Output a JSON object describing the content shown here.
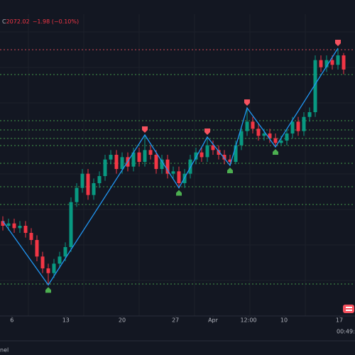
{
  "header": {
    "label": "C",
    "close": "2072.02",
    "change": "−1.98 (−0.10%)"
  },
  "footer": {
    "panel_label": "nel",
    "clock": "00:49:2"
  },
  "chart_data": {
    "type": "candlestick",
    "xlim": [
      -0.5,
      61
    ],
    "ylim": [
      1967.9,
      2095.4
    ],
    "xticks": [
      {
        "value": 1.6,
        "label": "6"
      },
      {
        "value": 11.1,
        "label": "13"
      },
      {
        "value": 21,
        "label": "20"
      },
      {
        "value": 30.4,
        "label": "27"
      },
      {
        "value": 37,
        "label": "Apr"
      },
      {
        "value": 43.25,
        "label": "12:00"
      },
      {
        "value": 49.5,
        "label": "10"
      },
      {
        "value": 59.25,
        "label": "17"
      }
    ],
    "up_color": "#089981",
    "down_color": "#f23645",
    "open": [
      2008,
      2006,
      2007,
      2005,
      2006,
      2003,
      2000,
      1993,
      1988,
      1986,
      1990,
      1993,
      1997,
      2016,
      2022,
      2028,
      2019,
      2024,
      2027,
      2034,
      2036,
      2030,
      2035,
      2031,
      2037,
      2033,
      2038,
      2036,
      2030,
      2034,
      2028,
      2029,
      2024,
      2028,
      2034,
      2037,
      2035,
      2040,
      2038,
      2036,
      2034,
      2033,
      2040,
      2046,
      2050,
      2047,
      2044,
      2045,
      2043,
      2041,
      2042,
      2045,
      2050,
      2046,
      2052,
      2054,
      2076,
      2073,
      2076,
      2074,
      2078
    ],
    "high": [
      2010,
      2009,
      2009,
      2008,
      2008,
      2005,
      2002,
      1995,
      1990,
      1992,
      1995,
      1999,
      2018,
      2024,
      2030,
      2030,
      2026,
      2029,
      2036,
      2038,
      2038,
      2037,
      2037,
      2039,
      2039,
      2044.4,
      2040,
      2038,
      2036,
      2036,
      2031,
      2031,
      2030,
      2036,
      2039,
      2039,
      2043.5,
      2042,
      2040,
      2038,
      2036,
      2042,
      2048,
      2055.8,
      2052,
      2049,
      2047,
      2047,
      2045,
      2044,
      2047,
      2052,
      2052,
      2054,
      2056,
      2078,
      2078,
      2078,
      2078,
      2081,
      2079
    ],
    "low": [
      2004,
      2004,
      2003,
      2003,
      2001,
      1998,
      1991,
      1986,
      1981,
      1984,
      1988,
      1991,
      1995,
      2014,
      2020,
      2017,
      2017,
      2022,
      2025,
      2032,
      2028,
      2028,
      2029,
      2029,
      2031,
      2031,
      2034,
      2028,
      2028,
      2026,
      2026,
      2022,
      2022,
      2026,
      2032,
      2033,
      2033,
      2036,
      2034,
      2032,
      2031.5,
      2032,
      2038,
      2044,
      2045,
      2042,
      2042,
      2041,
      2039.3,
      2040,
      2040,
      2043,
      2044,
      2044,
      2050,
      2052,
      2071,
      2071,
      2072,
      2072,
      2070
    ],
    "close": [
      2006,
      2007,
      2005,
      2006,
      2003,
      2000,
      1993,
      1988,
      1986,
      1990,
      1993,
      1997,
      2016,
      2022,
      2028,
      2019,
      2024,
      2027,
      2034,
      2036,
      2030,
      2035,
      2031,
      2037,
      2033,
      2038,
      2036,
      2030,
      2034,
      2028,
      2029,
      2024,
      2028,
      2034,
      2037,
      2035,
      2040,
      2038,
      2036,
      2034,
      2033,
      2040,
      2046,
      2050,
      2047,
      2044,
      2045,
      2043,
      2041,
      2042,
      2045,
      2050,
      2046,
      2052,
      2054,
      2076,
      2073,
      2076,
      2074,
      2078,
      2072.02
    ],
    "pivots": {
      "x": [
        0,
        8,
        25,
        31,
        36,
        40,
        43,
        48,
        59
      ],
      "values": [
        2008,
        1981,
        2044.4,
        2022,
        2043.5,
        2031.5,
        2055.8,
        2039.3,
        2081
      ],
      "kind": [
        null,
        "low",
        "high",
        "low",
        "high",
        "low",
        "high",
        "low",
        "high"
      ],
      "color": "#2196f3",
      "high_color": "#f7525f",
      "low_color": "#4caf50"
    },
    "levels": {
      "values": [
        2080.4,
        2069.9,
        2050.4,
        2046.5,
        2042.9,
        2039.9,
        2032.4,
        2022.5,
        2015,
        1981.4
      ],
      "colors": [
        "#f7525f",
        "#4caf50",
        "#4caf50",
        "#4caf50",
        "#4caf50",
        "#4caf50",
        "#4caf50",
        "#4caf50",
        "#4caf50",
        "#4caf50"
      ]
    }
  }
}
